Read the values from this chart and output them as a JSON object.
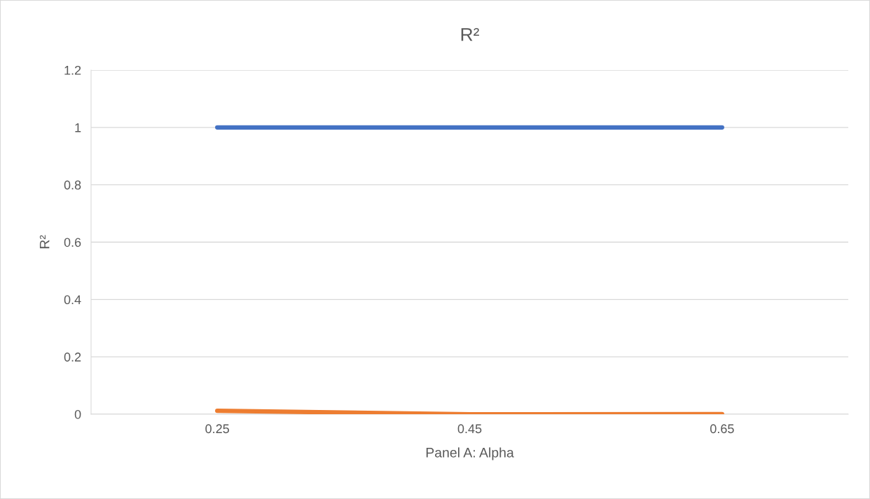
{
  "chart_data": {
    "type": "line",
    "title": "R²",
    "xlabel": "Panel A: Alpha",
    "ylabel": "R²",
    "categories": [
      "0.25",
      "0.45",
      "0.65"
    ],
    "series": [
      {
        "color": "#4472c4",
        "values": [
          1,
          1,
          1
        ]
      },
      {
        "color": "#ed7d31",
        "values": [
          0.012,
          0,
          0
        ]
      }
    ],
    "ylim": [
      0,
      1.2
    ],
    "yticks": [
      0,
      0.2,
      0.4,
      0.6,
      0.8,
      1,
      1.2
    ],
    "grid": "y",
    "legend": false,
    "marker": "none",
    "line_style": "solid"
  }
}
